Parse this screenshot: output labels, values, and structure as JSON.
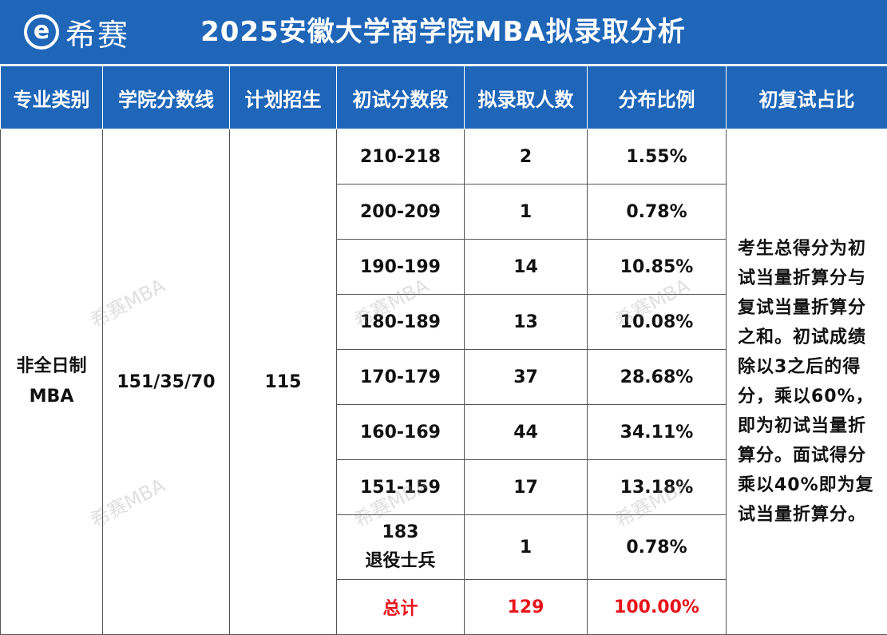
{
  "header": {
    "logo_icon": "e-circle-logo-icon",
    "brand": "希赛",
    "title": "2025安徽大学商学院MBA拟录取分析"
  },
  "table": {
    "columns": [
      "专业类别",
      "学院分数线",
      "计划招生",
      "初试分数段",
      "拟录取人数",
      "分布比例",
      "初复试占比"
    ],
    "category": "非全日制MBA",
    "category_line1": "非全日制",
    "category_line2": "MBA",
    "cutoff": "151/35/70",
    "plan": "115",
    "rows": [
      {
        "range": "210-218",
        "count": "2",
        "ratio": "1.55%"
      },
      {
        "range": "200-209",
        "count": "1",
        "ratio": "0.78%"
      },
      {
        "range": "190-199",
        "count": "14",
        "ratio": "10.85%"
      },
      {
        "range": "180-189",
        "count": "13",
        "ratio": "10.08%"
      },
      {
        "range": "170-179",
        "count": "37",
        "ratio": "28.68%"
      },
      {
        "range": "160-169",
        "count": "44",
        "ratio": "34.11%"
      },
      {
        "range": "151-159",
        "count": "17",
        "ratio": "13.18%"
      }
    ],
    "veteran_score": "183",
    "veteran_label": "退役士兵",
    "veteran_count": "1",
    "veteran_ratio": "0.78%",
    "total_label": "总计",
    "total_count": "129",
    "total_ratio": "100.00%",
    "note": "考生总得分为初试当量折算分与复试当量折算分之和。初试成绩 除以3之后的得分，乘以60%，即为初试当量折算分。面试得分乘以40%即为复试当量折算分。"
  },
  "watermark": "希赛MBA",
  "colors": {
    "header_blue": "#1f66b9",
    "total_red": "#e8141b"
  }
}
